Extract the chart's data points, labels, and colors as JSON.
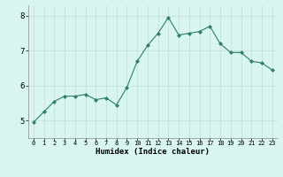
{
  "x": [
    0,
    1,
    2,
    3,
    4,
    5,
    6,
    7,
    8,
    9,
    10,
    11,
    12,
    13,
    14,
    15,
    16,
    17,
    18,
    19,
    20,
    21,
    22,
    23
  ],
  "y": [
    4.95,
    5.25,
    5.55,
    5.7,
    5.7,
    5.75,
    5.6,
    5.65,
    5.45,
    5.95,
    6.7,
    7.15,
    7.5,
    7.95,
    7.45,
    7.5,
    7.55,
    7.7,
    7.2,
    6.95,
    6.95,
    6.7,
    6.65,
    6.45
  ],
  "line_color": "#2e7d6e",
  "marker": "D",
  "marker_size": 2.0,
  "bg_color": "#d8f5f0",
  "grid_color": "#c0ddd8",
  "xlabel": "Humidex (Indice chaleur)",
  "ylim": [
    4.5,
    8.3
  ],
  "xlim": [
    -0.5,
    23.5
  ],
  "yticks": [
    5,
    6,
    7,
    8
  ],
  "xticks": [
    0,
    1,
    2,
    3,
    4,
    5,
    6,
    7,
    8,
    9,
    10,
    11,
    12,
    13,
    14,
    15,
    16,
    17,
    18,
    19,
    20,
    21,
    22,
    23
  ],
  "xtick_labels": [
    "0",
    "1",
    "2",
    "3",
    "4",
    "5",
    "6",
    "7",
    "8",
    "9",
    "10",
    "11",
    "12",
    "13",
    "14",
    "15",
    "16",
    "17",
    "18",
    "19",
    "20",
    "21",
    "22",
    "23"
  ]
}
